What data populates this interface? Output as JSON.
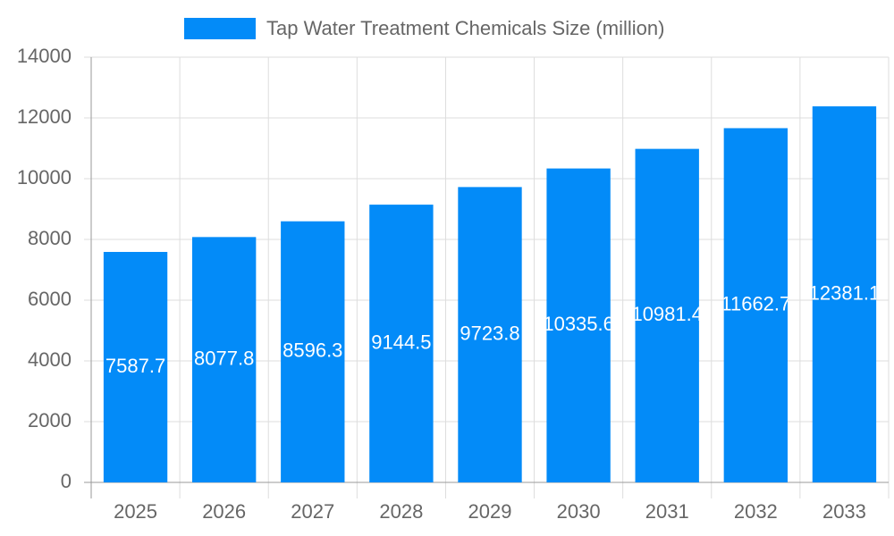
{
  "chart_data": {
    "type": "bar",
    "legend": "Tap Water Treatment Chemicals Size (million)",
    "categories": [
      "2025",
      "2026",
      "2027",
      "2028",
      "2029",
      "2030",
      "2031",
      "2032",
      "2033"
    ],
    "values": [
      7587.7,
      8077.8,
      8596.3,
      9144.5,
      9723.8,
      10335.6,
      10981.4,
      11662.7,
      12381.1
    ],
    "color": "#038bf8",
    "ylim": [
      0,
      14000
    ],
    "yticks": [
      0,
      2000,
      4000,
      6000,
      8000,
      10000,
      12000,
      14000
    ],
    "grid": true
  }
}
